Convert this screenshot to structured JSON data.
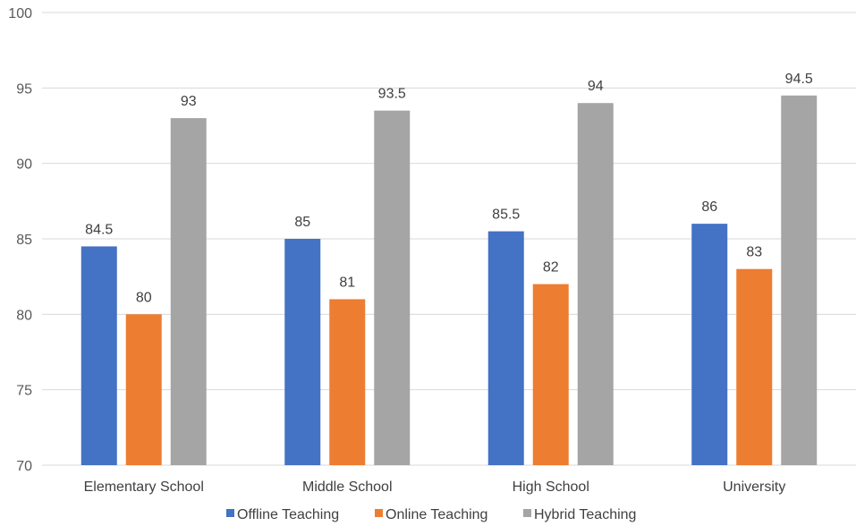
{
  "chart_data": {
    "type": "bar",
    "categories": [
      "Elementary School",
      "Middle School",
      "High School",
      "University"
    ],
    "series": [
      {
        "name": "Offline Teaching",
        "color": "#4472C4",
        "values": [
          84.5,
          85,
          85.5,
          86
        ]
      },
      {
        "name": "Online Teaching",
        "color": "#ED7D31",
        "values": [
          80,
          81,
          82,
          83
        ]
      },
      {
        "name": "Hybrid Teaching",
        "color": "#A5A5A5",
        "values": [
          93,
          93.5,
          94,
          94.5
        ]
      }
    ],
    "ylim": [
      70,
      100
    ],
    "yticks": [
      70,
      75,
      80,
      85,
      90,
      95,
      100
    ],
    "grid": true,
    "legend_position": "bottom"
  }
}
